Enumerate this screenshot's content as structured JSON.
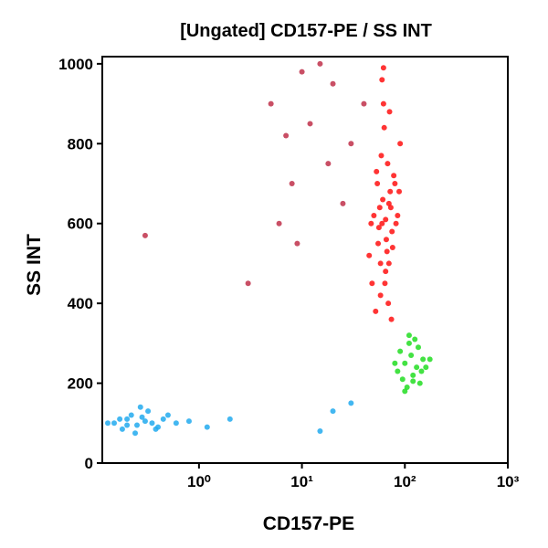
{
  "chart_data": {
    "type": "scatter",
    "title": "[Ungated] CD157-PE / SS INT",
    "x_label": "CD157-PE",
    "y_label": "SS INT",
    "xscale": "log",
    "xlim": [
      0.115,
      1000
    ],
    "ylim": [
      0,
      1018
    ],
    "xticks": [
      {
        "value": 1,
        "label": "10⁰"
      },
      {
        "value": 10,
        "label": "10¹"
      },
      {
        "value": 100,
        "label": "10²"
      },
      {
        "value": 1000,
        "label": "10³"
      }
    ],
    "yticks": [
      0,
      200,
      400,
      600,
      800,
      1000
    ],
    "series": [
      {
        "color": "#ff1010",
        "x": [
          60,
          70,
          55,
          80,
          65,
          50,
          75,
          90,
          45,
          62,
          68,
          58,
          72,
          85,
          52,
          66,
          78,
          48,
          63,
          57,
          70,
          82,
          60,
          54,
          74,
          67,
          59,
          88,
          47,
          64,
          71,
          56,
          61,
          69,
          76,
          53,
          65,
          58,
          73,
          62
        ],
        "y": [
          600,
          650,
          550,
          700,
          480,
          620,
          580,
          800,
          520,
          900,
          750,
          420,
          680,
          620,
          380,
          560,
          720,
          450,
          840,
          640,
          500,
          600,
          960,
          700,
          360,
          530,
          770,
          680,
          600,
          450,
          880,
          590,
          660,
          400,
          540,
          730,
          610,
          500,
          640,
          990
        ]
      },
      {
        "color": "#22dd22",
        "x": [
          100,
          120,
          90,
          140,
          110,
          130,
          85,
          150,
          105,
          125,
          95,
          115,
          160,
          100,
          135,
          80,
          120,
          145,
          110,
          175
        ],
        "y": [
          250,
          220,
          280,
          200,
          300,
          240,
          230,
          260,
          190,
          310,
          210,
          270,
          240,
          180,
          290,
          250,
          205,
          230,
          320,
          260
        ]
      },
      {
        "color": "#22aaee",
        "x": [
          0.15,
          0.2,
          0.25,
          0.3,
          0.18,
          0.22,
          0.35,
          0.28,
          0.4,
          0.13,
          0.24,
          0.32,
          0.45,
          0.2,
          0.27,
          0.6,
          0.8,
          0.17,
          0.38,
          0.5,
          1.2,
          2,
          20,
          30,
          15
        ],
        "y": [
          100,
          110,
          95,
          105,
          85,
          120,
          100,
          115,
          90,
          100,
          75,
          130,
          110,
          95,
          140,
          100,
          105,
          110,
          85,
          120,
          90,
          110,
          130,
          150,
          80
        ]
      },
      {
        "color": "#c0304a",
        "x": [
          5,
          8,
          12,
          20,
          30,
          6,
          15,
          25,
          9,
          40,
          3,
          18,
          10,
          7,
          0.3
        ],
        "y": [
          900,
          700,
          850,
          950,
          800,
          600,
          1000,
          650,
          550,
          900,
          450,
          750,
          980,
          820,
          570
        ]
      }
    ]
  }
}
